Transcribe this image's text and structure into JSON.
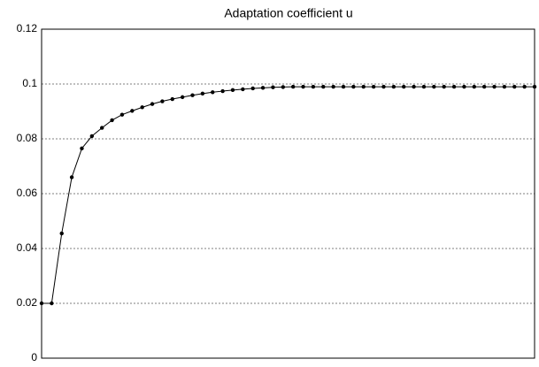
{
  "chart_data": {
    "type": "line",
    "title": "Adaptation coefficient u",
    "categories": [
      null,
      null,
      null,
      null,
      null,
      null,
      null,
      null,
      null,
      null,
      null,
      null,
      null,
      null,
      null,
      null,
      null,
      null,
      null,
      null,
      null,
      null,
      null,
      null,
      null,
      null,
      null,
      null,
      null,
      null,
      null,
      null,
      null,
      null,
      null,
      null,
      null,
      null,
      null,
      null,
      null,
      null,
      null,
      null,
      null,
      null,
      null,
      null,
      null,
      null
    ],
    "series": [
      {
        "name": "u",
        "color": "#000000",
        "values": [
          0.02,
          0.02,
          0.0455,
          0.066,
          0.0765,
          0.081,
          0.084,
          0.0868,
          0.0888,
          0.0902,
          0.0915,
          0.0927,
          0.0937,
          0.0945,
          0.0952,
          0.0959,
          0.0965,
          0.097,
          0.0974,
          0.0978,
          0.0981,
          0.0984,
          0.0986,
          0.0988,
          0.0989,
          0.099,
          0.099,
          0.099,
          0.099,
          0.099,
          0.099,
          0.099,
          0.099,
          0.099,
          0.099,
          0.099,
          0.099,
          0.099,
          0.099,
          0.099,
          0.099,
          0.099,
          0.099,
          0.099,
          0.099,
          0.099,
          0.099,
          0.099,
          0.099,
          0.099
        ]
      }
    ],
    "ylim": [
      0,
      0.12
    ],
    "yticks": [
      0,
      0.02,
      0.04,
      0.06,
      0.08,
      0.1,
      0.12
    ],
    "grid": true,
    "markers": true
  }
}
